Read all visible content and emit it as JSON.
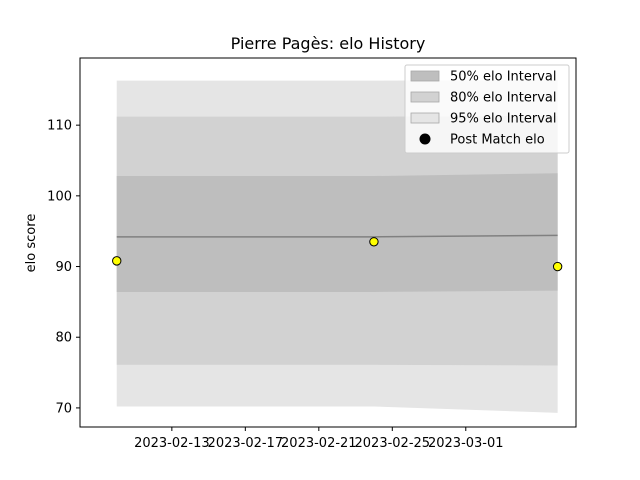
{
  "chart_data": {
    "type": "area",
    "title": "Pierre Pagès: elo History",
    "xlabel": "",
    "ylabel": "elo score",
    "x_ticks": [
      "2023-02-13",
      "2023-02-17",
      "2023-02-21",
      "2023-02-25",
      "2023-03-01"
    ],
    "y_ticks": [
      70,
      80,
      90,
      100,
      110
    ],
    "xlim": [
      "2023-02-08",
      "2023-03-07"
    ],
    "ylim": [
      67.3,
      119.5
    ],
    "grid": false,
    "legend_position": "top-right",
    "mean_line": {
      "x": [
        "2023-02-10",
        "2023-02-24",
        "2023-03-06"
      ],
      "y": [
        94.2,
        94.2,
        94.4
      ]
    },
    "bands": [
      {
        "name": "95% elo Interval",
        "color": "#e5e5e5",
        "x": [
          "2023-02-10",
          "2023-02-24",
          "2023-03-06"
        ],
        "upper": [
          116.3,
          116.3,
          116.4
        ],
        "lower": [
          70.2,
          70.2,
          69.3
        ]
      },
      {
        "name": "80% elo Interval",
        "color": "#d2d2d2",
        "x": [
          "2023-02-10",
          "2023-02-24",
          "2023-03-06"
        ],
        "upper": [
          111.2,
          111.2,
          111.3
        ],
        "lower": [
          76.1,
          76.1,
          76.0
        ]
      },
      {
        "name": "50% elo Interval",
        "color": "#bebebe",
        "x": [
          "2023-02-10",
          "2023-02-24",
          "2023-03-06"
        ],
        "upper": [
          102.8,
          102.8,
          103.2
        ],
        "lower": [
          86.4,
          86.4,
          86.6
        ]
      }
    ],
    "points": {
      "name": "Post Match elo",
      "color": "#ffff00",
      "x": [
        "2023-02-10",
        "2023-02-24",
        "2023-03-06"
      ],
      "y": [
        90.8,
        93.5,
        90.0
      ]
    },
    "legend": [
      "50% elo Interval",
      "80% elo Interval",
      "95% elo Interval",
      "Post Match elo"
    ]
  }
}
